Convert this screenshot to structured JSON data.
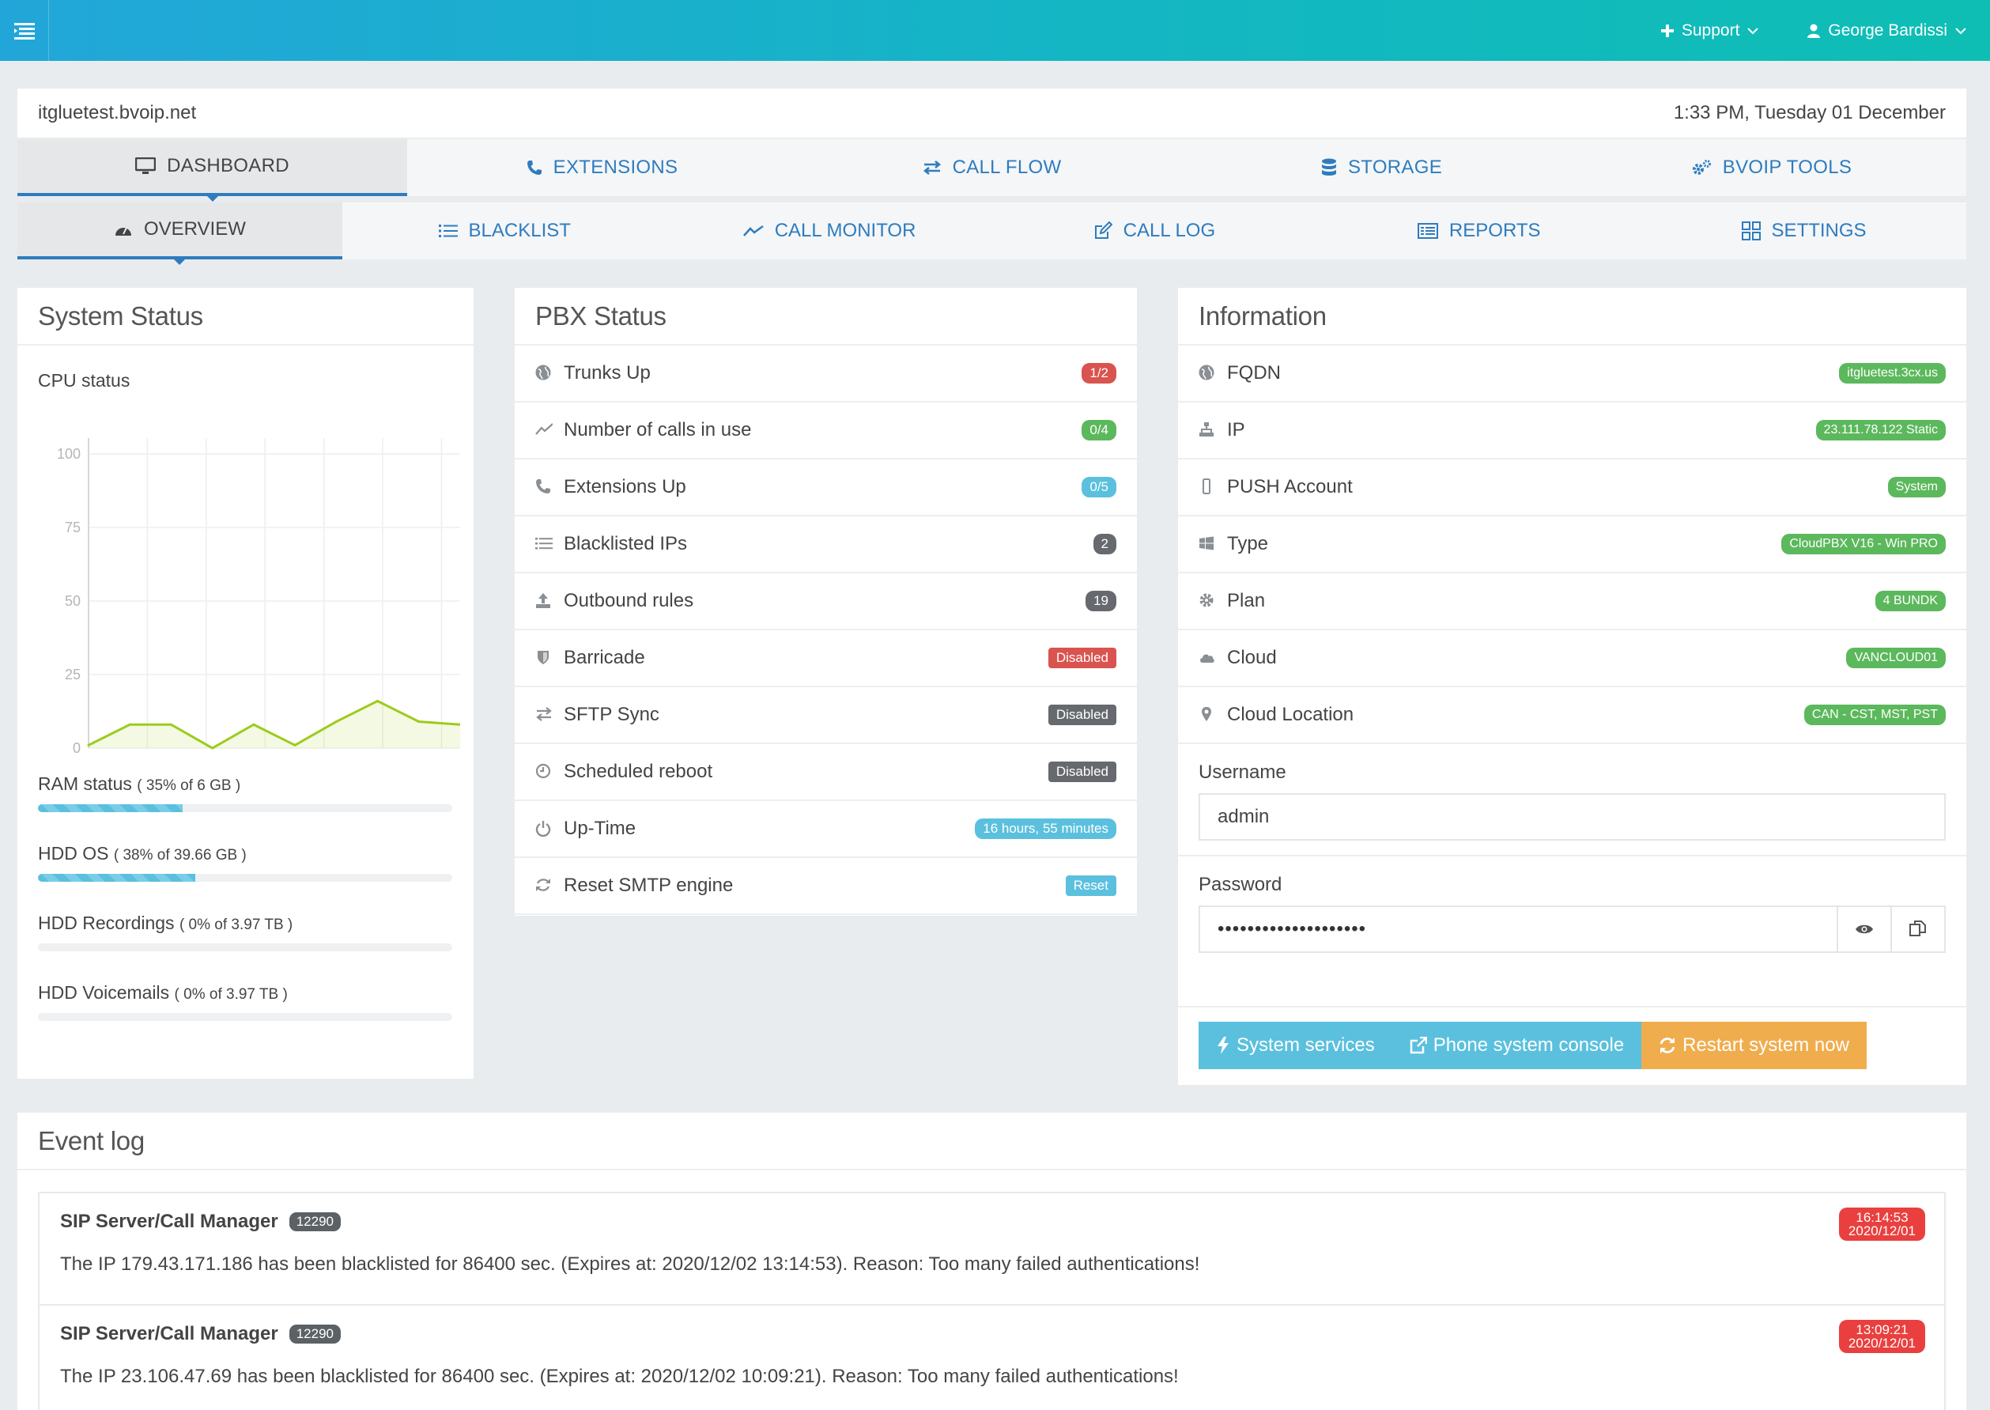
{
  "topbar": {
    "support_label": "Support",
    "user_name": "George Bardissi"
  },
  "header": {
    "hostname": "itgluetest.bvoip.net",
    "datetime": "1:33 PM, Tuesday 01 December"
  },
  "main_tabs": [
    {
      "label": "DASHBOARD",
      "icon": "monitor-icon"
    },
    {
      "label": "EXTENSIONS",
      "icon": "phone-icon"
    },
    {
      "label": "CALL FLOW",
      "icon": "exchange-icon"
    },
    {
      "label": "STORAGE",
      "icon": "database-icon"
    },
    {
      "label": "BVOIP TOOLS",
      "icon": "gears-icon"
    }
  ],
  "sub_tabs": [
    {
      "label": "OVERVIEW",
      "icon": "dashboard-icon"
    },
    {
      "label": "BLACKLIST",
      "icon": "list-icon"
    },
    {
      "label": "CALL MONITOR",
      "icon": "line-chart-icon"
    },
    {
      "label": "CALL LOG",
      "icon": "edit-icon"
    },
    {
      "label": "REPORTS",
      "icon": "report-icon"
    },
    {
      "label": "SETTINGS",
      "icon": "grid-icon"
    }
  ],
  "system_status": {
    "title": "System Status",
    "cpu_label": "CPU status",
    "resources": [
      {
        "label": "RAM status",
        "detail": "( 35% of 6 GB )",
        "percent": 35
      },
      {
        "label": "HDD OS",
        "detail": "( 38% of 39.66 GB )",
        "percent": 38
      },
      {
        "label": "HDD Recordings",
        "detail": "( 0% of 3.97 TB )",
        "percent": 0
      },
      {
        "label": "HDD Voicemails",
        "detail": "( 0% of 3.97 TB )",
        "percent": 0
      }
    ]
  },
  "chart_data": {
    "type": "area",
    "title": "",
    "xlabel": "",
    "ylabel": "",
    "ylim": [
      0,
      100
    ],
    "yticks": [
      "0",
      "25",
      "50",
      "75",
      "100"
    ],
    "values": [
      1,
      8,
      8,
      0,
      8,
      1,
      9,
      16,
      9,
      8
    ],
    "color": "#9ecb1c",
    "grid": true
  },
  "pbx_status": {
    "title": "PBX Status",
    "rows": [
      {
        "label": "Trunks Up",
        "value": "1/2",
        "color": "red",
        "icon": "globe-icon"
      },
      {
        "label": "Number of calls in use",
        "value": "0/4",
        "color": "green",
        "icon": "line-chart-icon"
      },
      {
        "label": "Extensions Up",
        "value": "0/5",
        "color": "blue",
        "icon": "phone-icon"
      },
      {
        "label": "Blacklisted IPs",
        "value": "2",
        "color": "gray",
        "icon": "list-icon"
      },
      {
        "label": "Outbound rules",
        "value": "19",
        "color": "gray",
        "icon": "upload-icon"
      },
      {
        "label": "Barricade",
        "value": "Disabled",
        "color": "red",
        "icon": "shield-icon"
      },
      {
        "label": "SFTP Sync",
        "value": "Disabled",
        "color": "gray",
        "icon": "exchange-icon"
      },
      {
        "label": "Scheduled reboot",
        "value": "Disabled",
        "color": "gray",
        "icon": "clock-icon"
      },
      {
        "label": "Up-Time",
        "value": "16 hours, 55 minutes",
        "color": "blue",
        "icon": "power-icon"
      },
      {
        "label": "Reset SMTP engine",
        "value": "Reset",
        "color": "blue",
        "icon": "refresh-icon"
      }
    ]
  },
  "information": {
    "title": "Information",
    "rows": [
      {
        "label": "FQDN",
        "value": "itgluetest.3cx.us",
        "icon": "globe-icon"
      },
      {
        "label": "IP",
        "value": "23.111.78.122 Static",
        "icon": "sitemap-icon"
      },
      {
        "label": "PUSH Account",
        "value": "System",
        "icon": "mobile-icon"
      },
      {
        "label": "Type",
        "value": "CloudPBX V16 - Win PRO",
        "icon": "windows-icon"
      },
      {
        "label": "Plan",
        "value": "4 BUNDK",
        "icon": "gear-icon"
      },
      {
        "label": "Cloud",
        "value": "VANCLOUD01",
        "icon": "cloud-icon"
      },
      {
        "label": "Cloud Location",
        "value": "CAN - CST, MST, PST",
        "icon": "map-marker-icon"
      }
    ],
    "username_label": "Username",
    "username_value": "admin",
    "password_label": "Password",
    "password_value": "••••••••••••••••••••",
    "buttons": {
      "services": "System services",
      "console": "Phone system console",
      "restart": "Restart system now"
    }
  },
  "event_log": {
    "title": "Event log",
    "events": [
      {
        "source": "SIP Server/Call Manager",
        "id": "12290",
        "message": "The IP 179.43.171.186 has been blacklisted for 86400 sec. (Expires at: 2020/12/02 13:14:53). Reason: Too many failed authentications!",
        "time": "16:14:53",
        "date": "2020/12/01"
      },
      {
        "source": "SIP Server/Call Manager",
        "id": "12290",
        "message": "The IP 23.106.47.69 has been blacklisted for 86400 sec. (Expires at: 2020/12/02 10:09:21). Reason: Too many failed authentications!",
        "time": "13:09:21",
        "date": "2020/12/01"
      }
    ]
  }
}
